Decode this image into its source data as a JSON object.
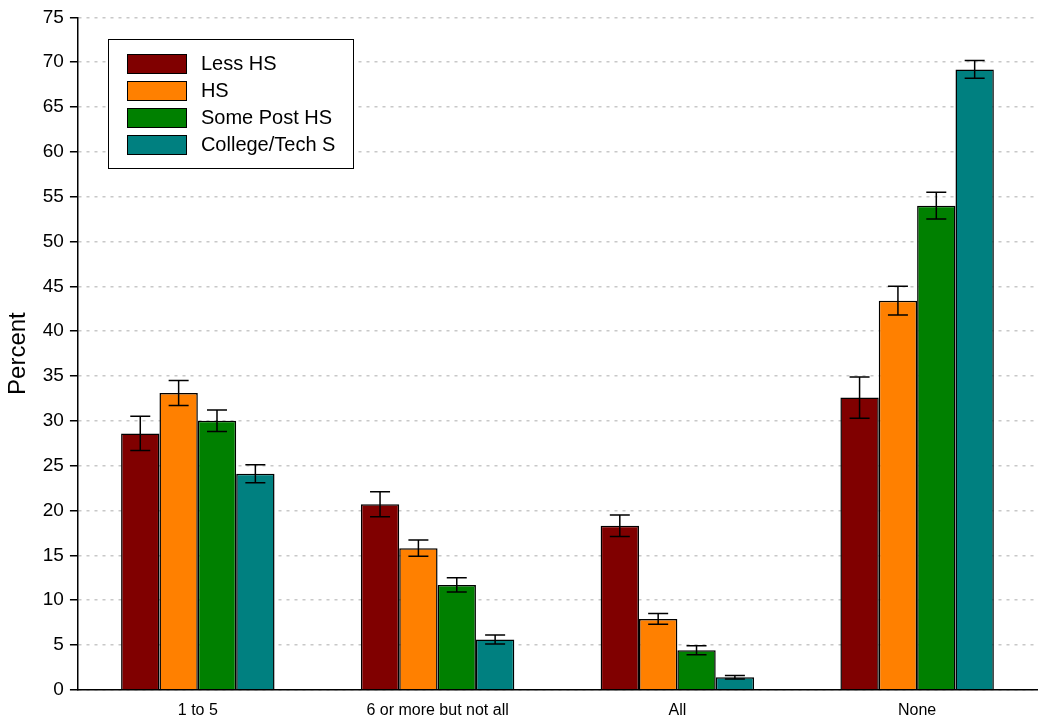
{
  "chart_data": {
    "type": "bar",
    "ylabel": "Percent",
    "categories": [
      "1 to 5",
      "6 or more but not all",
      "All",
      "None"
    ],
    "series": [
      {
        "name": "Less HS",
        "color": "#800000",
        "values": [
          28.6,
          20.7,
          18.3,
          32.6
        ],
        "errors": [
          1.9,
          1.4,
          1.2,
          2.3
        ]
      },
      {
        "name": "HS",
        "color": "#ff8000",
        "values": [
          33.1,
          15.8,
          7.9,
          43.4
        ],
        "errors": [
          1.4,
          0.9,
          0.6,
          1.6
        ]
      },
      {
        "name": "Some Post HS",
        "color": "#008000",
        "values": [
          30.0,
          11.7,
          4.4,
          54.0
        ],
        "errors": [
          1.2,
          0.8,
          0.5,
          1.5
        ]
      },
      {
        "name": "College/Tech S",
        "color": "#008080",
        "values": [
          24.1,
          5.6,
          1.4,
          69.2
        ],
        "errors": [
          1.0,
          0.5,
          0.2,
          1.0
        ]
      }
    ],
    "ylim": [
      0,
      75
    ],
    "yticks": [
      0,
      5,
      10,
      15,
      20,
      25,
      30,
      35,
      40,
      45,
      50,
      55,
      60,
      65,
      70,
      75
    ],
    "grid": "y",
    "legend": "top left"
  }
}
